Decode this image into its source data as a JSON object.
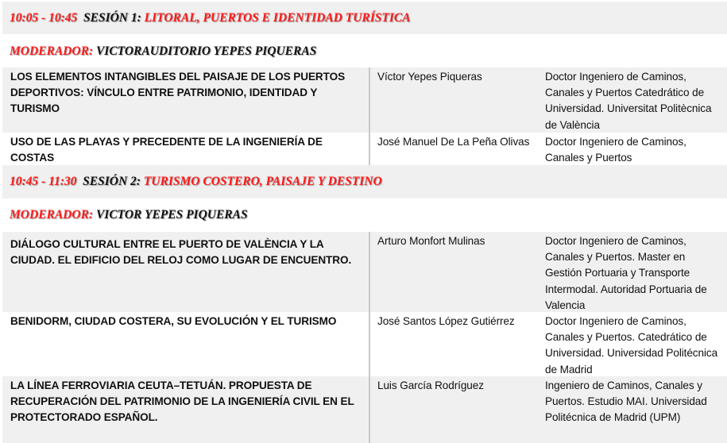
{
  "sessions": [
    {
      "time": "10:05 - 10:45",
      "label": "SESIÓN 1:",
      "title": "LITORAL, PUERTOS E IDENTIDAD TURÍSTICA",
      "moderator_label": "MODERADOR:",
      "moderator": "VICTORAUDITORIO YEPES PIQUERAS",
      "talks": [
        {
          "title": "LOS ELEMENTOS INTANGIBLES DEL PAISAJE DE LOS PUERTOS DEPORTIVOS: VÍNCULO ENTRE PATRIMONIO, IDENTIDAD Y TURISMO",
          "speaker": "Víctor Yepes Piqueras",
          "affiliation": "Doctor Ingeniero de Caminos, Canales y Puertos Catedrático de Universidad. Universitat Politècnica de València"
        },
        {
          "title": "USO DE LAS PLAYAS Y PRECEDENTE DE LA INGENIERÍA DE COSTAS",
          "speaker": "José Manuel De La Peña Olivas",
          "affiliation": "Doctor Ingeniero de Caminos, Canales y Puertos"
        }
      ]
    },
    {
      "time": "10:45 - 11:30",
      "label": "SESIÓN 2:",
      "title": "TURISMO COSTERO, PAISAJE Y DESTINO",
      "moderator_label": "MODERADOR:",
      "moderator": "VICTOR YEPES PIQUERAS",
      "talks": [
        {
          "title": "DIÁLOGO CULTURAL ENTRE EL PUERTO DE VALÈNCIA Y LA CIUDAD. EL EDIFICIO DEL RELOJ COMO LUGAR DE ENCUENTRO.",
          "speaker": "Arturo Monfort Mulinas",
          "affiliation": "Doctor Ingeniero de Caminos, Canales y Puertos. Master en Gestión Portuaria y Transporte Intermodal. Autoridad Portuaria de Valencia"
        },
        {
          "title": "BENIDORM, CIUDAD COSTERA, SU EVOLUCIÓN Y EL TURISMO",
          "speaker": "José Santos López Gutiérrez",
          "affiliation": "Doctor Ingeniero de Caminos, Canales y Puertos. Catedrático de Universidad. Universidad Politécnica de Madrid"
        },
        {
          "title": "LA LÍNEA FERROVIARIA CEUTA–TETUÁN. PROPUESTA DE RECUPERACIÓN DEL PATRIMONIO DE LA INGENIERÍA CIVIL EN EL PROTECTORADO ESPAÑOL.",
          "speaker": "Luis García Rodríguez",
          "affiliation": "Ingeniero de Caminos, Canales y Puertos. Estudio MAI. Universidad Politécnica de Madrid (UPM)"
        }
      ]
    }
  ],
  "colors": {
    "accent": "#ff1a1a",
    "row_alt": "#f0f0f0",
    "text": "#111111"
  }
}
